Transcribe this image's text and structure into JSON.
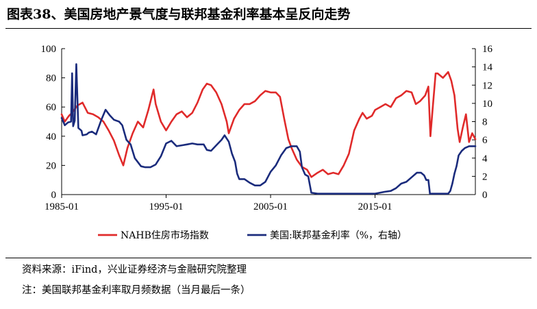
{
  "title": "图表38、美国房地产景气度与联邦基金利率基本呈反向走势",
  "source": "资料来源：iFind，兴业证券经济与金融研究院整理",
  "footnote": "注：美国联邦基金利率取月频数据（当月最后一条）",
  "chart_data": {
    "type": "line",
    "xlim": [
      1985.0,
      2024.6
    ],
    "x_ticks": [
      1985,
      1995,
      2005,
      2015
    ],
    "x_tick_labels": [
      "1985-01",
      "1995-01",
      "2005-01",
      "2015-01"
    ],
    "left_axis": {
      "ylim": [
        0,
        100
      ],
      "ticks": [
        0,
        20,
        40,
        60,
        80,
        100
      ]
    },
    "right_axis": {
      "ylim": [
        0,
        16
      ],
      "ticks": [
        0,
        2,
        4,
        6,
        8,
        10,
        12,
        14,
        16
      ]
    },
    "legend_position": "bottom",
    "grid": false,
    "series": [
      {
        "name": "NAHB住房市场指数",
        "axis": "left",
        "color": "#e02a2a",
        "x": [
          1985.0,
          1985.3,
          1985.7,
          1986.0,
          1986.5,
          1987.0,
          1987.5,
          1988.0,
          1988.5,
          1989.0,
          1989.5,
          1990.0,
          1990.5,
          1990.9,
          1991.3,
          1991.8,
          1992.3,
          1992.8,
          1993.3,
          1993.8,
          1994.0,
          1994.5,
          1995.0,
          1995.5,
          1996.0,
          1996.5,
          1997.0,
          1997.5,
          1998.0,
          1998.5,
          1998.9,
          1999.3,
          1999.8,
          2000.3,
          2000.8,
          2001.0,
          2001.5,
          2002.0,
          2002.5,
          2003.0,
          2003.5,
          2004.0,
          2004.5,
          2005.0,
          2005.5,
          2005.9,
          2006.3,
          2006.7,
          2007.0,
          2007.5,
          2008.0,
          2008.5,
          2008.9,
          2009.5,
          2010.0,
          2010.5,
          2011.0,
          2011.5,
          2012.0,
          2012.5,
          2013.0,
          2013.5,
          2013.8,
          2014.2,
          2014.7,
          2015.0,
          2015.5,
          2016.0,
          2016.5,
          2017.0,
          2017.5,
          2018.0,
          2018.5,
          2018.9,
          2019.3,
          2019.8,
          2020.1,
          2020.3,
          2020.5,
          2020.8,
          2021.0,
          2021.5,
          2022.0,
          2022.3,
          2022.6,
          2022.9,
          2023.1,
          2023.4,
          2023.7,
          2024.0,
          2024.3,
          2024.6
        ],
        "values": [
          55,
          50,
          54,
          56,
          61,
          63,
          56,
          55,
          53,
          50,
          44,
          37,
          27,
          20,
          32,
          42,
          50,
          46,
          58,
          72,
          62,
          50,
          44,
          50,
          55,
          57,
          53,
          56,
          63,
          72,
          76,
          75,
          70,
          62,
          50,
          42,
          52,
          58,
          62,
          62,
          64,
          68,
          71,
          70,
          70,
          67,
          52,
          38,
          32,
          24,
          19,
          17,
          12,
          15,
          17,
          14,
          15,
          14,
          20,
          28,
          44,
          52,
          56,
          52,
          54,
          58,
          60,
          62,
          60,
          66,
          68,
          71,
          70,
          62,
          64,
          68,
          74,
          40,
          58,
          83,
          83,
          80,
          84,
          78,
          68,
          45,
          36,
          46,
          55,
          36,
          42,
          38
        ]
      },
      {
        "name": "美国:联邦基金利率（%，右轴）",
        "axis": "right",
        "color": "#1a2b7c",
        "x": [
          1985.0,
          1985.3,
          1985.6,
          1985.9,
          1986.0,
          1986.1,
          1986.25,
          1986.4,
          1986.6,
          1986.9,
          1987.0,
          1987.4,
          1987.6,
          1987.9,
          1988.3,
          1988.8,
          1989.2,
          1989.6,
          1990.0,
          1990.5,
          1990.8,
          1991.2,
          1991.6,
          1992.0,
          1992.6,
          1993.0,
          1993.5,
          1994.0,
          1994.5,
          1995.0,
          1995.5,
          1996.0,
          1996.5,
          1997.0,
          1997.5,
          1998.0,
          1998.6,
          1998.9,
          1999.3,
          1999.8,
          2000.3,
          2000.6,
          2001.0,
          2001.3,
          2001.6,
          2001.8,
          2002.0,
          2002.5,
          2003.0,
          2003.5,
          2004.0,
          2004.5,
          2005.0,
          2005.5,
          2006.0,
          2006.5,
          2007.0,
          2007.5,
          2007.8,
          2008.0,
          2008.3,
          2008.6,
          2008.9,
          2009.5,
          2011.0,
          2013.0,
          2015.0,
          2015.9,
          2016.5,
          2017.0,
          2017.5,
          2018.0,
          2018.5,
          2019.0,
          2019.4,
          2019.7,
          2019.9,
          2020.1,
          2020.25,
          2021.0,
          2022.0,
          2022.2,
          2022.4,
          2022.6,
          2022.8,
          2023.0,
          2023.3,
          2023.6,
          2024.0,
          2024.3,
          2024.6
        ],
        "values": [
          8.4,
          7.6,
          7.9,
          8.0,
          13.3,
          7.5,
          8.1,
          14.3,
          7.3,
          7.0,
          6.5,
          6.6,
          6.8,
          6.9,
          6.6,
          8.2,
          9.3,
          8.7,
          8.2,
          8.0,
          7.6,
          6.0,
          5.5,
          4.0,
          3.1,
          3.0,
          3.0,
          3.3,
          4.2,
          5.6,
          5.9,
          5.3,
          5.4,
          5.5,
          5.6,
          5.5,
          5.5,
          4.9,
          4.8,
          5.4,
          6.0,
          6.5,
          5.8,
          4.5,
          3.6,
          2.3,
          1.7,
          1.7,
          1.3,
          1.0,
          1.0,
          1.4,
          2.5,
          3.2,
          4.3,
          5.1,
          5.3,
          5.3,
          4.7,
          3.0,
          2.2,
          2.0,
          0.2,
          0.1,
          0.1,
          0.1,
          0.1,
          0.3,
          0.4,
          0.7,
          1.2,
          1.4,
          1.9,
          2.4,
          2.4,
          2.1,
          1.6,
          1.6,
          0.1,
          0.1,
          0.1,
          0.4,
          1.2,
          2.3,
          3.1,
          4.3,
          4.8,
          5.1,
          5.3,
          5.3,
          5.3
        ]
      }
    ]
  }
}
